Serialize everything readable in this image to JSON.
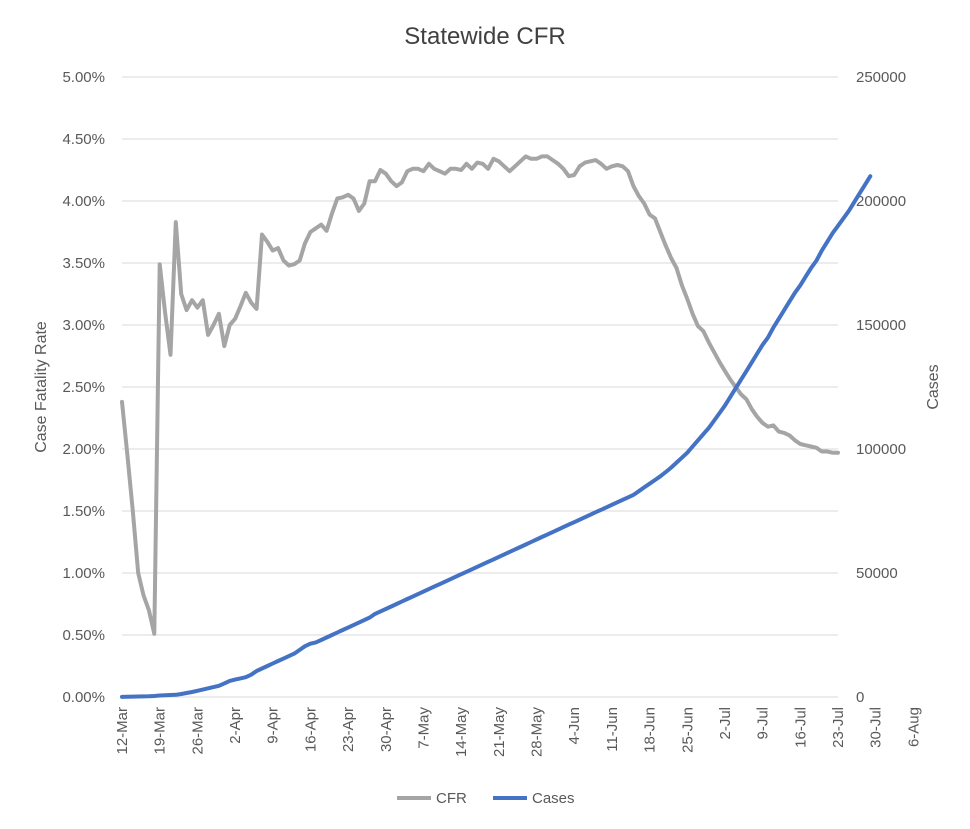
{
  "chart_data": {
    "type": "line",
    "title": "Statewide CFR",
    "ylabel": "Case Fatality Rate",
    "y2label": "Cases",
    "ylim": [
      0,
      0.05
    ],
    "y2lim": [
      0,
      250000
    ],
    "grid": true,
    "legend_position": "bottom",
    "y_ticks": [
      "0.00%",
      "0.50%",
      "1.00%",
      "1.50%",
      "2.00%",
      "2.50%",
      "3.00%",
      "3.50%",
      "4.00%",
      "4.50%",
      "5.00%"
    ],
    "y2_ticks": [
      "0",
      "50000",
      "100000",
      "150000",
      "200000",
      "250000"
    ],
    "x_ticks": [
      "12-Mar",
      "19-Mar",
      "26-Mar",
      "2-Apr",
      "9-Apr",
      "16-Apr",
      "23-Apr",
      "30-Apr",
      "7-May",
      "14-May",
      "21-May",
      "28-May",
      "4-Jun",
      "11-Jun",
      "18-Jun",
      "25-Jun",
      "2-Jul",
      "9-Jul",
      "16-Jul",
      "23-Jul",
      "30-Jul",
      "6-Aug"
    ],
    "series": [
      {
        "name": "CFR",
        "color": "#a5a5a5",
        "axis": "left",
        "values": [
          0.0238,
          0.0195,
          0.015,
          0.01,
          0.0082,
          0.007,
          0.0051,
          0.0349,
          0.031,
          0.0276,
          0.0383,
          0.0325,
          0.0312,
          0.032,
          0.0314,
          0.032,
          0.0292,
          0.03,
          0.0309,
          0.0283,
          0.03,
          0.0305,
          0.0315,
          0.0326,
          0.0318,
          0.0313,
          0.0373,
          0.0367,
          0.036,
          0.0362,
          0.0352,
          0.0348,
          0.0349,
          0.0352,
          0.0366,
          0.0375,
          0.0378,
          0.0381,
          0.0376,
          0.039,
          0.0402,
          0.0403,
          0.0405,
          0.0402,
          0.0392,
          0.0398,
          0.0416,
          0.0416,
          0.0425,
          0.0422,
          0.0416,
          0.0412,
          0.0415,
          0.0424,
          0.0426,
          0.0426,
          0.0424,
          0.043,
          0.0426,
          0.0424,
          0.0422,
          0.0426,
          0.0426,
          0.0425,
          0.043,
          0.0426,
          0.0431,
          0.043,
          0.0426,
          0.0434,
          0.0432,
          0.0428,
          0.0424,
          0.0428,
          0.0432,
          0.0436,
          0.0434,
          0.0434,
          0.0436,
          0.0436,
          0.0433,
          0.043,
          0.0426,
          0.042,
          0.0421,
          0.0428,
          0.0431,
          0.0432,
          0.0433,
          0.043,
          0.0426,
          0.0428,
          0.0429,
          0.0428,
          0.0424,
          0.0412,
          0.0404,
          0.0398,
          0.0389,
          0.0386,
          0.0375,
          0.0364,
          0.0354,
          0.0346,
          0.0332,
          0.0321,
          0.0309,
          0.0299,
          0.0295,
          0.0286,
          0.0278,
          0.027,
          0.0263,
          0.0256,
          0.025,
          0.0244,
          0.024,
          0.0232,
          0.0226,
          0.0221,
          0.0218,
          0.0219,
          0.0214,
          0.0213,
          0.0211,
          0.0207,
          0.0204,
          0.0203,
          0.0202,
          0.0201,
          0.0198,
          0.0198,
          0.0197,
          0.0197
        ]
      },
      {
        "name": "Cases",
        "color": "#4472c4",
        "axis": "right",
        "values": [
          50,
          100,
          150,
          200,
          250,
          300,
          400,
          600,
          700,
          800,
          900,
          1200,
          1600,
          2000,
          2500,
          3000,
          3500,
          4000,
          4500,
          5500,
          6500,
          7000,
          7500,
          8000,
          9000,
          10500,
          11500,
          12500,
          13500,
          14500,
          15500,
          16500,
          17500,
          19000,
          20500,
          21500,
          22000,
          23000,
          24000,
          25000,
          26000,
          27000,
          28000,
          29000,
          30000,
          31000,
          32000,
          33500,
          34500,
          35500,
          36500,
          37500,
          38500,
          39500,
          40500,
          41500,
          42500,
          43500,
          44500,
          45500,
          46500,
          47500,
          48500,
          49500,
          50500,
          51500,
          52500,
          53500,
          54500,
          55500,
          56500,
          57500,
          58500,
          59500,
          60500,
          61500,
          62500,
          63500,
          64500,
          65500,
          66500,
          67500,
          68500,
          69500,
          70500,
          71500,
          72500,
          73500,
          74500,
          75500,
          76500,
          77500,
          78500,
          79500,
          80500,
          81500,
          83000,
          84500,
          86000,
          87500,
          89000,
          90700,
          92500,
          94500,
          96500,
          98500,
          101000,
          103500,
          106000,
          108500,
          111500,
          114500,
          117500,
          121000,
          124500,
          128000,
          131500,
          135000,
          138500,
          142000,
          145000,
          149000,
          152500,
          156000,
          159500,
          163000,
          166000,
          169500,
          173000,
          176000,
          180000,
          183500,
          187000,
          190000,
          193000,
          196000,
          199500,
          203000,
          206500,
          210000
        ]
      }
    ]
  }
}
